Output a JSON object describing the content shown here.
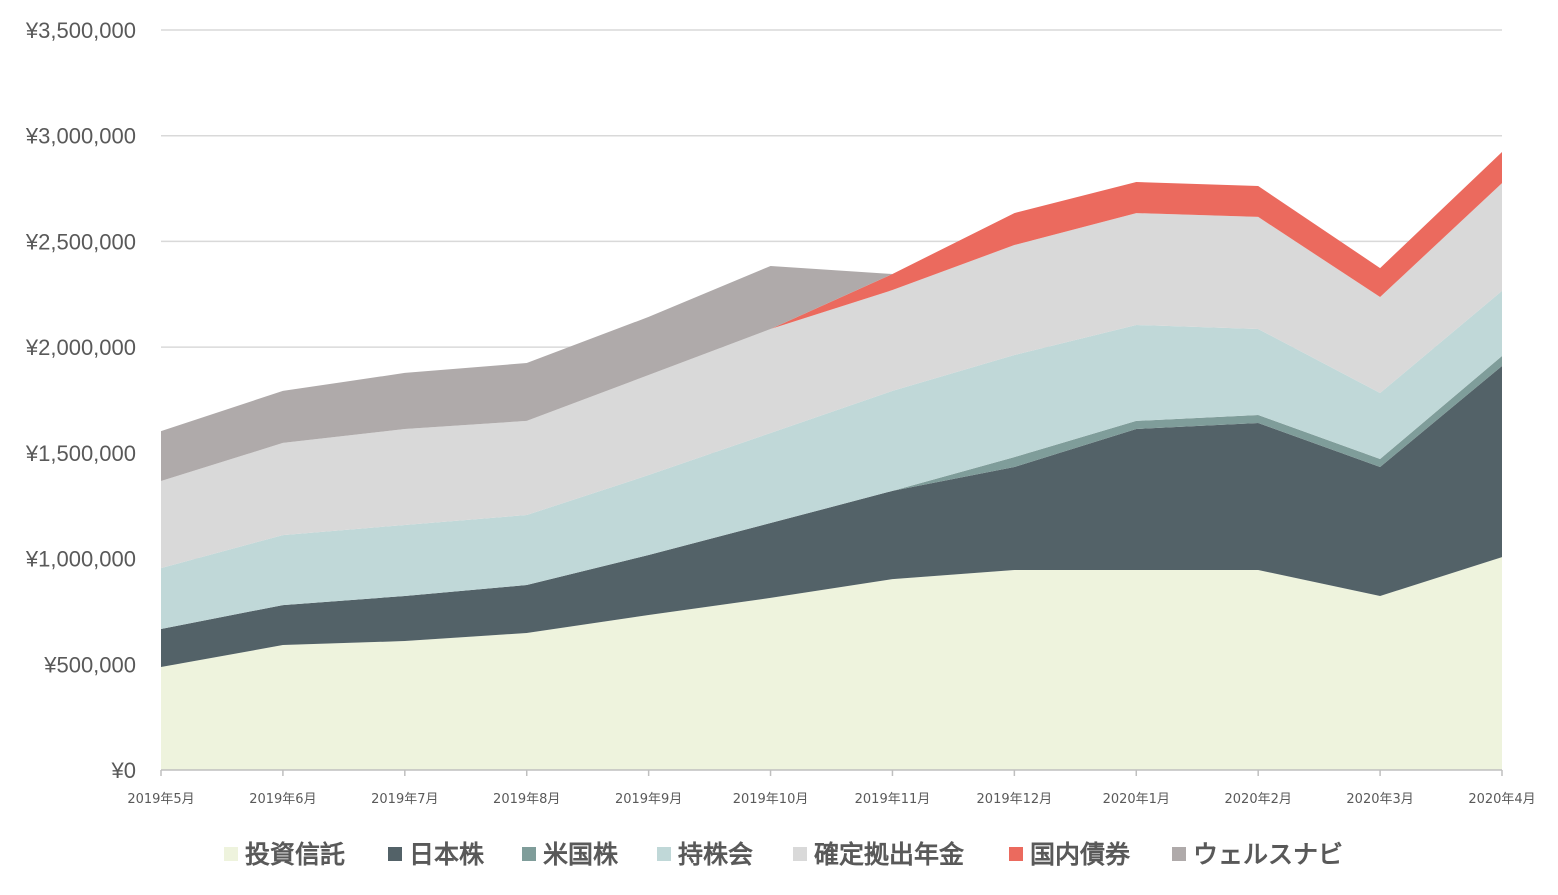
{
  "chart_data": {
    "type": "area",
    "stacked": true,
    "title": "",
    "xlabel": "",
    "ylabel": "",
    "ylim": [
      0,
      3500000
    ],
    "yticks": [
      "¥0",
      "¥500,000",
      "¥1,000,000",
      "¥1,500,000",
      "¥2,000,000",
      "¥2,500,000",
      "¥3,000,000",
      "¥3,500,000"
    ],
    "ytick_values": [
      0,
      500000,
      1000000,
      1500000,
      2000000,
      2500000,
      3000000,
      3500000
    ],
    "grid": true,
    "legend_position": "bottom",
    "categories": [
      "2019年5月",
      "2019年6月",
      "2019年7月",
      "2019年8月",
      "2019年9月",
      "2019年10月",
      "2019年11月",
      "2019年12月",
      "2020年1月",
      "2020年2月",
      "2020年3月",
      "2020年4月"
    ],
    "series": [
      {
        "name": "投資信託",
        "color": "#EEF3DD",
        "values": [
          487000,
          591000,
          610000,
          648000,
          733000,
          814000,
          903000,
          946000,
          946000,
          946000,
          823000,
          1007000
        ]
      },
      {
        "name": "日本株",
        "color": "#536268",
        "values": [
          180000,
          189000,
          213000,
          227000,
          284000,
          354000,
          417000,
          487000,
          667000,
          695000,
          610000,
          904000
        ]
      },
      {
        "name": "米国株",
        "color": "#7F9D9A",
        "values": [
          0,
          0,
          0,
          0,
          0,
          0,
          0,
          47000,
          38000,
          38000,
          38000,
          47000
        ]
      },
      {
        "name": "持株会",
        "color": "#C0D8D8",
        "values": [
          288000,
          331000,
          336000,
          331000,
          378000,
          426000,
          473000,
          483000,
          454000,
          407000,
          312000,
          308000
        ]
      },
      {
        "name": "確定拠出年金",
        "color": "#D9D9D9",
        "values": [
          412000,
          436000,
          454000,
          445000,
          473000,
          492000,
          477000,
          520000,
          529000,
          530000,
          454000,
          510000
        ]
      },
      {
        "name": "国内債券",
        "color": "#EB6A5E",
        "values": [
          0,
          0,
          0,
          0,
          0,
          0,
          76000,
          151000,
          147000,
          146000,
          137000,
          147000
        ]
      },
      {
        "name": "ウェルスナビ",
        "color": "#AFAAAA",
        "values": [
          236000,
          246000,
          265000,
          274000,
          275000,
          298000,
          0,
          0,
          0,
          0,
          0,
          0
        ]
      }
    ]
  }
}
